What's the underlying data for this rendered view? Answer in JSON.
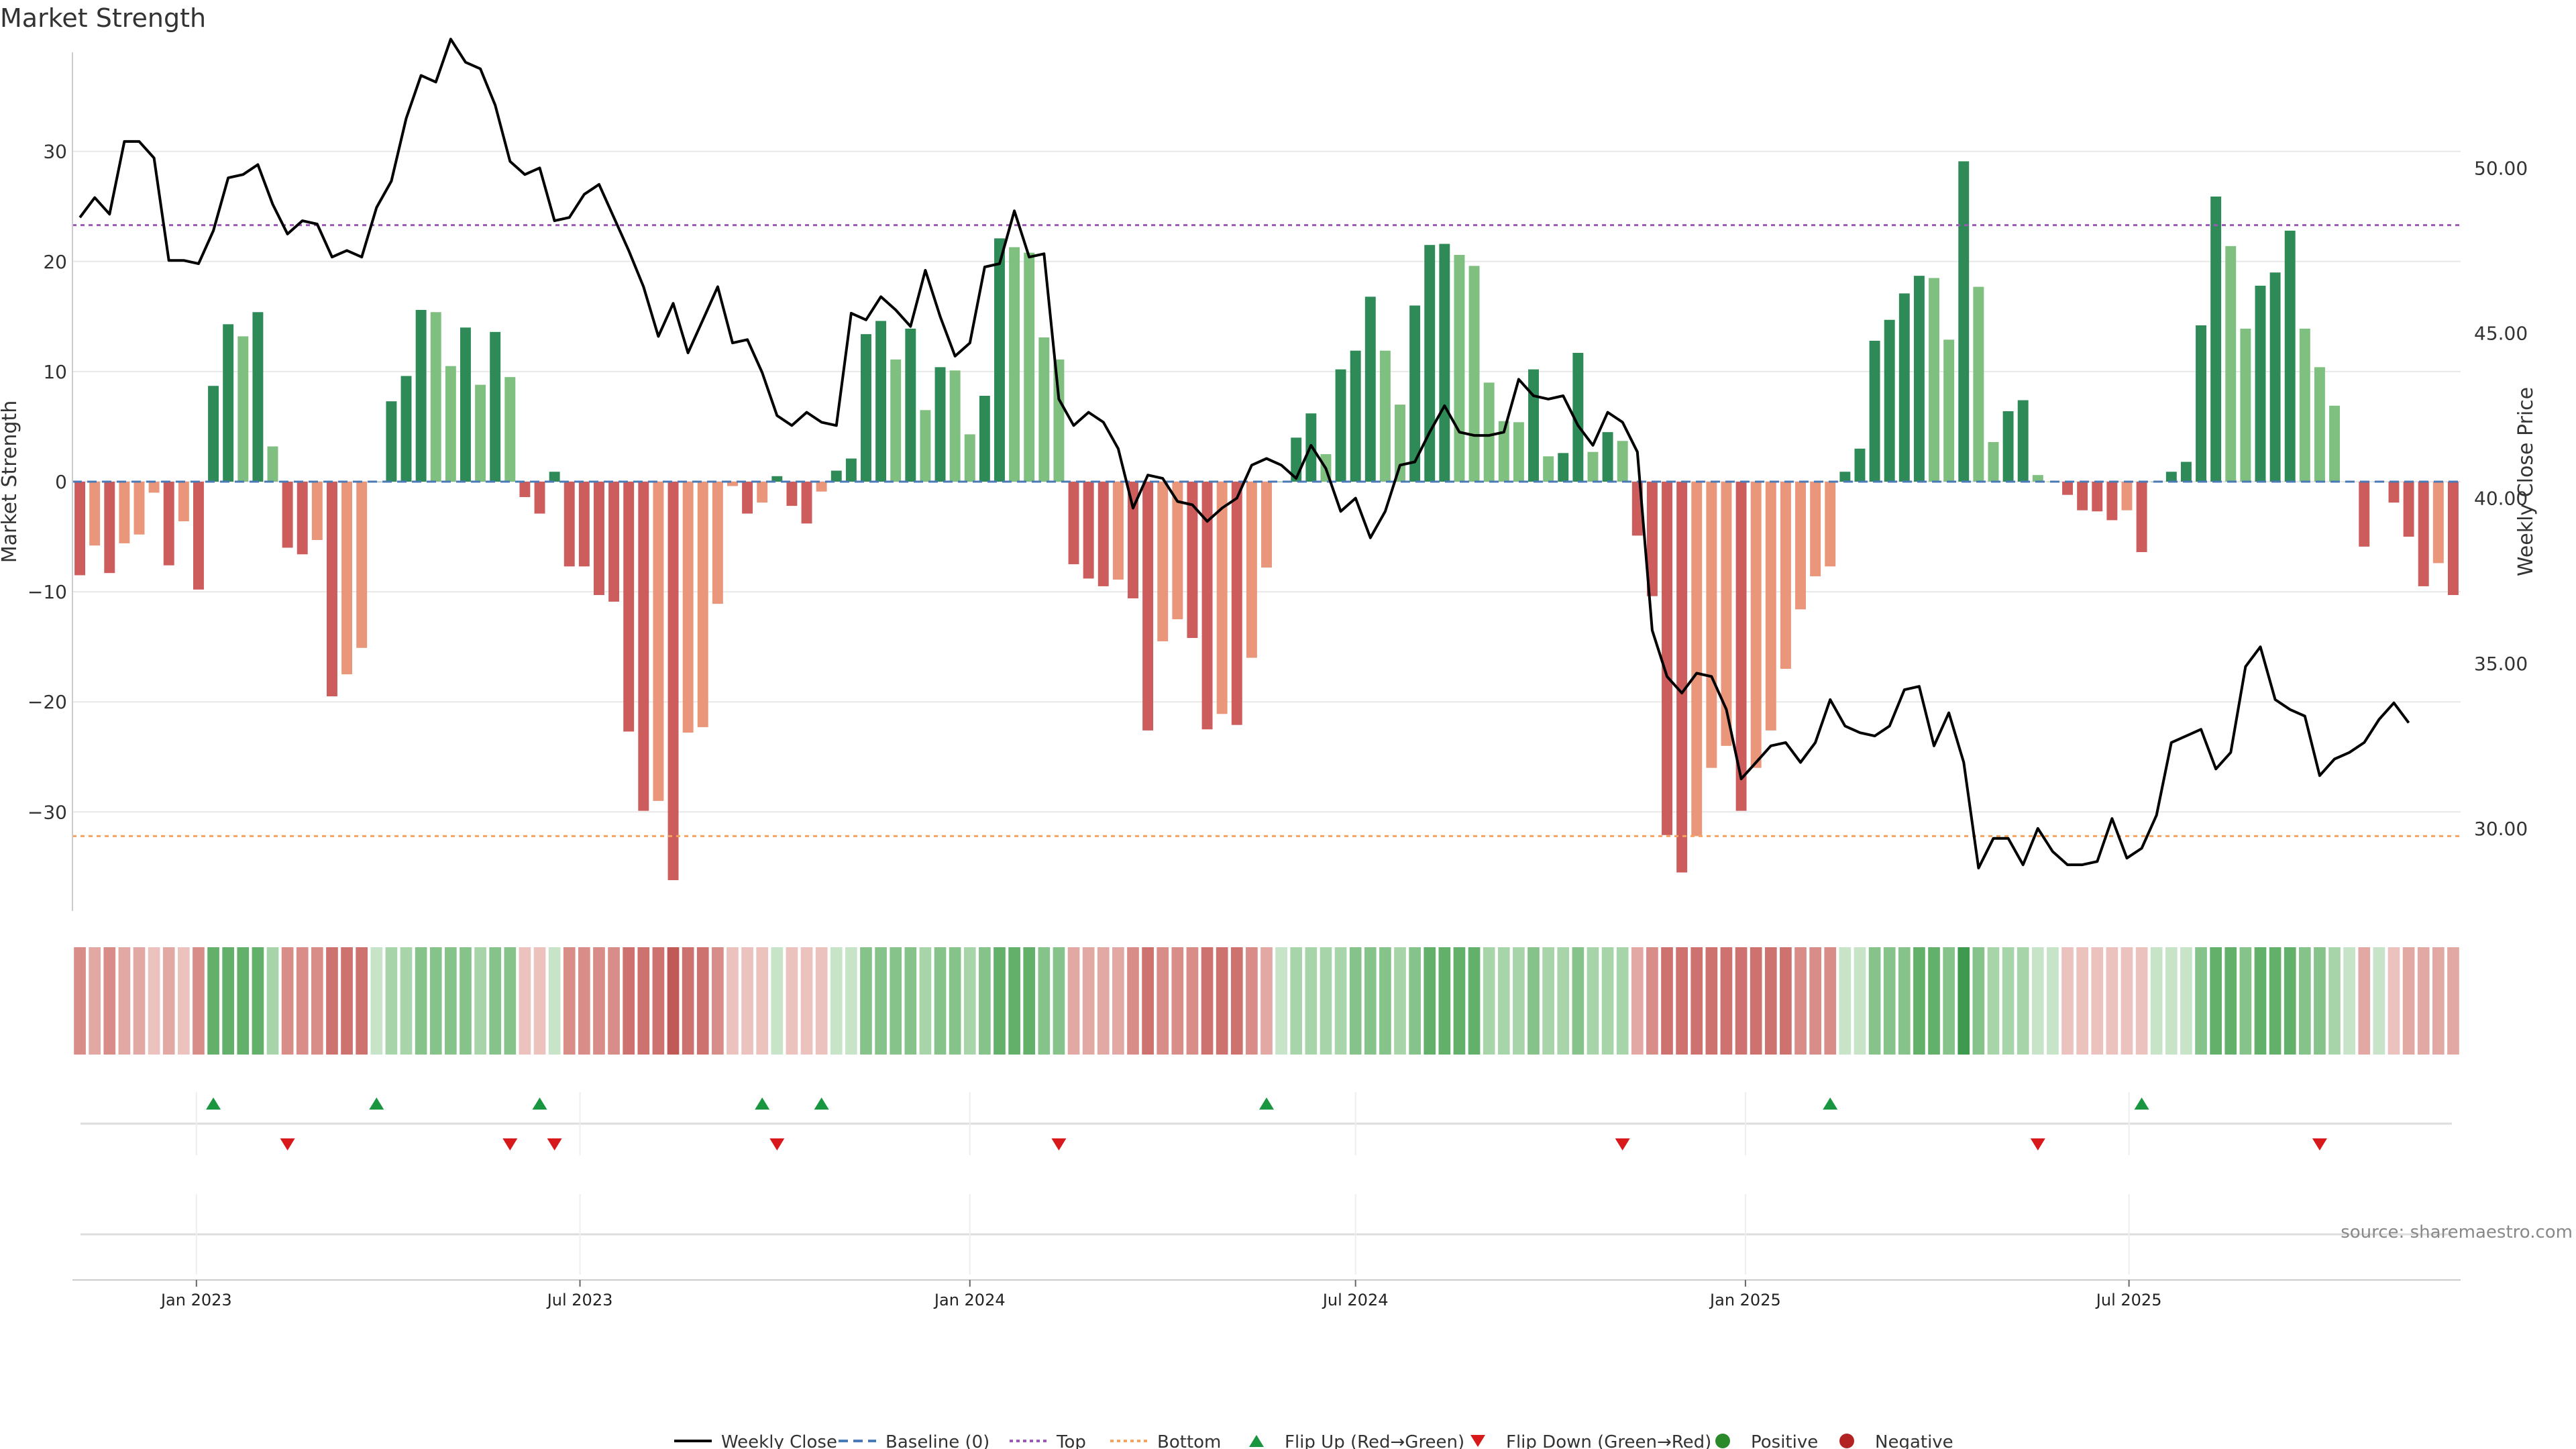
{
  "title": "Market Strength",
  "source": "source: sharemaestro.com",
  "colors": {
    "pos_strong": "#2e8b57",
    "pos_weak": "#7fbf7f",
    "neg_strong": "#cd5c5c",
    "neg_weak": "#e9967a",
    "price": "#000000",
    "baseline": "#4a7ab5",
    "top": "#9b59b6",
    "bottom": "#f4a460",
    "flip_up": "#1a9641",
    "flip_down": "#d7191c",
    "positive": "#2a8a2a",
    "negative": "#b22222",
    "grid": "#e8e8e8"
  },
  "chart_data": {
    "type": "bar",
    "title": "Market Strength",
    "ylabel": "Market Strength",
    "y2label": "Weekly Close Price",
    "ylim": [
      -39,
      39
    ],
    "y2lim": [
      27.5,
      53.5
    ],
    "yticks": [
      -30,
      -20,
      -10,
      0,
      10,
      20,
      30
    ],
    "y2ticks": [
      30.0,
      35.0,
      40.0,
      45.0,
      50.0
    ],
    "start_date": "2022-11-07",
    "week_days": 7,
    "xticks": [
      {
        "date": "2023-01-01",
        "label": "Jan 2023"
      },
      {
        "date": "2023-07-01",
        "label": "Jul 2023"
      },
      {
        "date": "2024-01-01",
        "label": "Jan 2024"
      },
      {
        "date": "2024-07-01",
        "label": "Jul 2024"
      },
      {
        "date": "2025-01-01",
        "label": "Jan 2025"
      },
      {
        "date": "2025-07-01",
        "label": "Jul 2025"
      }
    ],
    "top_line": 23.3,
    "bottom_line": -32.2,
    "strength": [
      -8.5,
      -5.8,
      -8.3,
      -5.6,
      -4.8,
      -1.0,
      -7.6,
      -3.6,
      -9.8,
      8.7,
      14.3,
      13.2,
      15.4,
      3.2,
      -6.0,
      -6.6,
      -5.3,
      -19.5,
      -17.5,
      -15.1,
      0,
      7.3,
      9.6,
      15.6,
      15.4,
      10.5,
      14.0,
      8.8,
      13.6,
      9.5,
      -1.4,
      -2.9,
      0.9,
      -7.7,
      -7.7,
      -10.3,
      -10.9,
      -22.7,
      -29.9,
      -29.0,
      -36.2,
      -22.8,
      -22.3,
      -11.1,
      -0.4,
      -2.9,
      -1.9,
      0.5,
      -2.2,
      -3.8,
      -0.9,
      1.0,
      2.1,
      13.4,
      14.6,
      11.1,
      13.9,
      6.5,
      10.4,
      10.1,
      4.3,
      7.8,
      22.1,
      21.3,
      20.8,
      13.1,
      11.1,
      -7.5,
      -8.8,
      -9.5,
      -8.9,
      -10.6,
      -22.6,
      -14.5,
      -12.5,
      -14.2,
      -22.5,
      -21.1,
      -22.1,
      -16.0,
      -7.8,
      0,
      4.0,
      6.2,
      2.5,
      10.2,
      11.9,
      16.8,
      11.9,
      7.0,
      16.0,
      21.5,
      21.6,
      20.6,
      19.6,
      9.0,
      5.5,
      5.4,
      10.2,
      2.3,
      2.6,
      11.7,
      2.7,
      4.5,
      3.7,
      -4.9,
      -10.4,
      -32.1,
      -35.5,
      -32.2,
      -26.0,
      -24.0,
      -29.9,
      -26.0,
      -22.6,
      -17.0,
      -11.6,
      -8.6,
      -7.7,
      0.9,
      3.0,
      12.8,
      14.7,
      17.1,
      18.7,
      18.5,
      12.9,
      29.1,
      17.7,
      3.6,
      6.4,
      7.4,
      0.6,
      0,
      -1.2,
      -2.6,
      -2.7,
      -3.5,
      -2.6,
      -6.4,
      0,
      0.9,
      1.8,
      14.2,
      25.9,
      21.4,
      13.9,
      17.8,
      19.0,
      22.8,
      13.9,
      10.4,
      6.9,
      0,
      -5.9,
      0,
      -1.9,
      -5.0,
      -9.5,
      -7.4,
      -10.3
    ],
    "weekly_close": [
      48.5,
      49.1,
      48.6,
      50.8,
      50.8,
      50.3,
      47.2,
      47.2,
      47.1,
      48.1,
      49.7,
      49.8,
      50.1,
      48.9,
      48.0,
      48.4,
      48.3,
      47.3,
      47.5,
      47.3,
      48.8,
      49.6,
      51.5,
      52.8,
      52.6,
      53.9,
      53.2,
      53.0,
      51.9,
      50.2,
      49.8,
      50.0,
      48.4,
      48.5,
      49.2,
      49.5,
      48.5,
      47.5,
      46.4,
      44.9,
      45.9,
      44.4,
      45.4,
      46.4,
      44.7,
      44.8,
      43.8,
      42.5,
      42.2,
      42.6,
      42.3,
      42.2,
      45.6,
      45.4,
      46.1,
      45.7,
      45.2,
      46.9,
      45.5,
      44.3,
      44.7,
      47.0,
      47.1,
      48.7,
      47.3,
      47.4,
      43.0,
      42.2,
      42.6,
      42.3,
      41.5,
      39.7,
      40.7,
      40.6,
      39.9,
      39.8,
      39.3,
      39.7,
      40.0,
      41.0,
      41.2,
      41.0,
      40.6,
      41.6,
      40.9,
      39.6,
      40.0,
      38.8,
      39.6,
      41.0,
      41.1,
      42.0,
      42.8,
      42.0,
      41.9,
      41.9,
      42.0,
      43.6,
      43.1,
      43.0,
      43.1,
      42.2,
      41.6,
      42.6,
      42.3,
      41.4,
      36.0,
      34.6,
      34.1,
      34.7,
      34.6,
      33.6,
      31.5,
      32.0,
      32.5,
      32.6,
      32.0,
      32.6,
      33.9,
      33.1,
      32.9,
      32.8,
      33.1,
      34.2,
      34.3,
      32.5,
      33.5,
      32.0,
      28.8,
      29.7,
      29.7,
      28.9,
      30.0,
      29.3,
      28.9,
      28.9,
      29.0,
      30.3,
      29.1,
      29.4,
      30.4,
      32.6,
      32.8,
      33.0,
      31.8,
      32.3,
      34.9,
      35.5,
      33.9,
      33.6,
      33.4,
      31.6,
      32.1,
      32.3,
      32.6,
      33.3,
      33.8,
      33.2
    ],
    "heat_shade": [
      3,
      2,
      3,
      2,
      2,
      1,
      2,
      1,
      3,
      4,
      4,
      4,
      4,
      2,
      3,
      3,
      3,
      4,
      4,
      4,
      1,
      2,
      2,
      3,
      3,
      3,
      3,
      2,
      3,
      3,
      1,
      1,
      1,
      3,
      3,
      3,
      3,
      4,
      4,
      4,
      5,
      4,
      4,
      3,
      1,
      1,
      1,
      1,
      1,
      1,
      1,
      1,
      1,
      3,
      3,
      3,
      3,
      2,
      3,
      3,
      2,
      3,
      4,
      4,
      4,
      3,
      3,
      2,
      2,
      2,
      2,
      3,
      4,
      3,
      3,
      3,
      4,
      4,
      4,
      3,
      2,
      1,
      2,
      2,
      2,
      2,
      3,
      3,
      3,
      2,
      3,
      4,
      4,
      4,
      4,
      2,
      2,
      2,
      3,
      2,
      2,
      3,
      2,
      2,
      2,
      2,
      3,
      4,
      4,
      4,
      4,
      4,
      4,
      4,
      4,
      4,
      3,
      3,
      3,
      1,
      1,
      3,
      3,
      3,
      4,
      4,
      3,
      5,
      3,
      2,
      2,
      2,
      1,
      1,
      1,
      1,
      1,
      1,
      1,
      1,
      1,
      1,
      1,
      3,
      4,
      4,
      3,
      4,
      4,
      4,
      3,
      3,
      2,
      1,
      2,
      1,
      1,
      2,
      2,
      2,
      2
    ],
    "flip_up_idx": [
      9,
      20,
      31,
      46,
      50,
      80,
      118,
      139
    ],
    "flip_down_idx": [
      14,
      29,
      32,
      47,
      66,
      104,
      132,
      151
    ],
    "legend": [
      "Weekly Close",
      "Baseline (0)",
      "Top",
      "Bottom",
      "Flip Up (Red→Green)",
      "Flip Down (Green→Red)",
      "Positive",
      "Negative"
    ]
  }
}
